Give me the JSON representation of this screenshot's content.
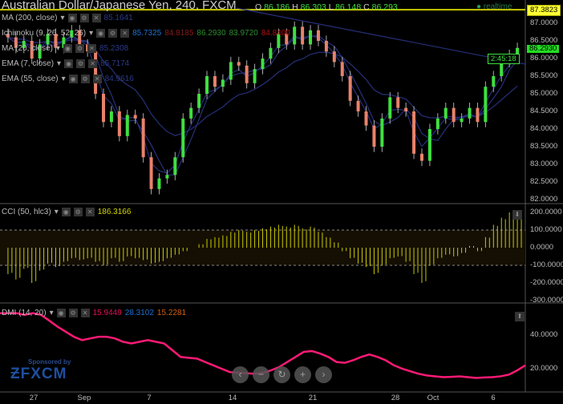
{
  "header": {
    "title": "Australian Dollar/Japanese Yen, 240, FXCM",
    "ohlc": {
      "o_label": "O",
      "o": "86.186",
      "h_label": "H",
      "h": "86.303",
      "l_label": "L",
      "l": "86.148",
      "c_label": "C",
      "c": "86.293"
    },
    "realtime": "realtime"
  },
  "indicators": [
    {
      "name": "MA (200, close)",
      "values": [
        "85.1641"
      ],
      "colors": [
        "#2a3a8a"
      ]
    },
    {
      "name": "Ichimoku (9, 26, 52, 26)",
      "values": [
        "85.7325",
        "84.8185",
        "86.2930",
        "83.9720",
        "84.8400"
      ],
      "colors": [
        "#1e6fd0",
        "#8b1a1a",
        "#2e8b2e",
        "#2e8b2e",
        "#b01010"
      ]
    },
    {
      "name": "MA (20, close)",
      "values": [
        "85.2308"
      ],
      "colors": [
        "#2a3a8a"
      ]
    },
    {
      "name": "EMA (7, close)",
      "values": [
        "85.7174"
      ],
      "colors": [
        "#2a3a8a"
      ]
    },
    {
      "name": "EMA (55, close)",
      "values": [
        "84.9616"
      ],
      "colors": [
        "#2a3a8a"
      ]
    }
  ],
  "cci_legend": {
    "name": "CCI (50, hlc3)",
    "value": "186.3166",
    "color": "#d4d400"
  },
  "dmi_legend": {
    "name": "DMI (14, 20)",
    "values": [
      "15.9449",
      "28.3102",
      "15.2281"
    ],
    "colors": [
      "#e0105a",
      "#1e6fd0",
      "#d06010"
    ]
  },
  "price_axis": {
    "ticks": [
      "87.0000",
      "86.5000",
      "86.0000",
      "85.5000",
      "85.0000",
      "84.5000",
      "84.0000",
      "83.5000",
      "83.0000",
      "82.5000",
      "82.0000"
    ],
    "hline_label": "87.3823",
    "current_price": "86.2930",
    "countdown": "2:45:18"
  },
  "cci_axis": {
    "ticks": [
      "200.0000",
      "100.0000",
      "0.0000",
      "-100.0000",
      "-200.0000",
      "-300.0000"
    ]
  },
  "dmi_axis": {
    "ticks": [
      "40.0000",
      "20.0000"
    ]
  },
  "time_axis": {
    "labels": [
      "27",
      "Sep",
      "7",
      "14",
      "21",
      "28",
      "Oct",
      "6"
    ]
  },
  "sponsor": {
    "text": "Sponsored by",
    "brand": "FXCM"
  },
  "nav_buttons": [
    "‹",
    "−",
    "↻",
    "+",
    "›"
  ],
  "colors": {
    "up": "#3fe03f",
    "down": "#e8826a",
    "ma": "#26307a",
    "hline": "#c8c800",
    "dmi": "#ff1a75",
    "cci": "#c8c800"
  },
  "chart_data": [
    {
      "type": "candlestick",
      "title": "Australian Dollar/Japanese Yen, 240, FXCM",
      "ylim": [
        82.0,
        87.4
      ],
      "hline": 87.3823,
      "closes": [
        86.6,
        86.3,
        86.5,
        86.0,
        86.4,
        86.7,
        86.3,
        86.6,
        86.8,
        86.4,
        86.2,
        85.0,
        84.2,
        84.5,
        83.8,
        84.4,
        84.3,
        83.2,
        82.3,
        82.6,
        82.7,
        83.2,
        84.3,
        84.6,
        85.0,
        85.5,
        85.2,
        85.4,
        85.9,
        85.8,
        85.3,
        85.7,
        86.0,
        86.3,
        86.7,
        86.4,
        86.9,
        86.4,
        86.8,
        86.5,
        86.2,
        85.9,
        85.5,
        84.8,
        84.5,
        84.1,
        83.5,
        84.3,
        84.9,
        84.6,
        84.5,
        83.3,
        83.1,
        84.0,
        84.3,
        84.6,
        84.2,
        84.3,
        84.6,
        84.2,
        85.2,
        85.5,
        85.9,
        86.1,
        86.3
      ]
    },
    {
      "type": "bar",
      "title": "CCI (50, hlc3)",
      "ylim": [
        -300,
        220
      ],
      "levels": [
        100,
        -100
      ],
      "values": [
        -150,
        -180,
        -120,
        -200,
        -130,
        -90,
        -110,
        -80,
        -60,
        -70,
        -60,
        -80,
        -100,
        -60,
        -80,
        -50,
        -60,
        -70,
        -90,
        -80,
        -60,
        -40,
        -20,
        0,
        20,
        50,
        60,
        70,
        90,
        100,
        90,
        100,
        110,
        120,
        130,
        120,
        130,
        110,
        120,
        90,
        60,
        30,
        -20,
        -60,
        -90,
        -110,
        -150,
        -100,
        -60,
        -50,
        -80,
        -150,
        -200,
        -100,
        -60,
        -40,
        -50,
        -30,
        10,
        -20,
        60,
        130,
        170,
        200,
        186
      ]
    },
    {
      "type": "line",
      "title": "DMI (14, 20)",
      "ylim": [
        10,
        55
      ],
      "values": [
        53,
        53,
        53,
        52,
        53,
        52,
        48.6,
        45,
        42,
        39,
        37,
        38,
        39,
        39,
        38,
        36,
        35,
        36,
        37,
        36,
        35,
        31,
        27,
        26.5,
        26,
        24,
        22,
        20,
        18,
        17.6,
        17.3,
        17,
        17.5,
        19,
        21,
        24,
        27,
        30,
        30.5,
        29,
        27,
        24,
        23.5,
        25,
        27,
        28.5,
        27,
        25,
        22,
        20,
        18.5,
        17,
        16,
        15.5,
        15,
        15.2,
        15.5,
        15,
        14.5,
        14.8,
        15,
        15.5,
        16.5,
        19,
        22
      ]
    }
  ]
}
